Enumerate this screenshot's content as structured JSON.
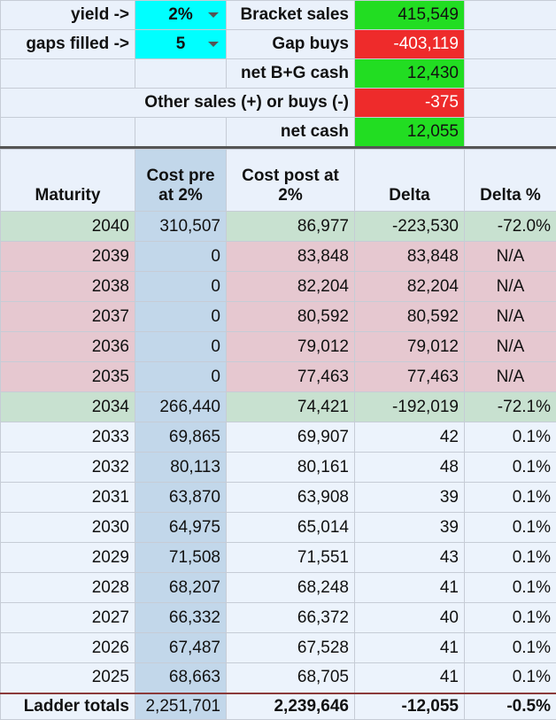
{
  "controls": {
    "yield_label": "yield  ->",
    "yield_value": "2%",
    "gaps_label": "gaps filled ->",
    "gaps_value": "5"
  },
  "summary": {
    "bracket_sales_label": "Bracket sales",
    "bracket_sales_value": "415,549",
    "gap_buys_label": "Gap buys",
    "gap_buys_value": "-403,119",
    "net_bg_label": "net B+G cash",
    "net_bg_value": "12,430",
    "other_label": "Other sales (+) or buys (-)",
    "other_value": "-375",
    "net_cash_label": "net cash",
    "net_cash_value": "12,055"
  },
  "table": {
    "headers": {
      "maturity": "Maturity",
      "cost_pre_1": "Cost pre",
      "cost_pre_2": "at 2%",
      "cost_post_1": "Cost post at",
      "cost_post_2": "2%",
      "delta": "Delta",
      "delta_pct": "Delta %"
    },
    "rows": [
      {
        "year": "2040",
        "pre": "310,507",
        "post": "86,977",
        "delta": "-223,530",
        "pct": "-72.0%"
      },
      {
        "year": "2039",
        "pre": "0",
        "post": "83,848",
        "delta": "83,848",
        "pct": "N/A"
      },
      {
        "year": "2038",
        "pre": "0",
        "post": "82,204",
        "delta": "82,204",
        "pct": "N/A"
      },
      {
        "year": "2037",
        "pre": "0",
        "post": "80,592",
        "delta": "80,592",
        "pct": "N/A"
      },
      {
        "year": "2036",
        "pre": "0",
        "post": "79,012",
        "delta": "79,012",
        "pct": "N/A"
      },
      {
        "year": "2035",
        "pre": "0",
        "post": "77,463",
        "delta": "77,463",
        "pct": "N/A"
      },
      {
        "year": "2034",
        "pre": "266,440",
        "post": "74,421",
        "delta": "-192,019",
        "pct": "-72.1%"
      },
      {
        "year": "2033",
        "pre": "69,865",
        "post": "69,907",
        "delta": "42",
        "pct": "0.1%"
      },
      {
        "year": "2032",
        "pre": "80,113",
        "post": "80,161",
        "delta": "48",
        "pct": "0.1%"
      },
      {
        "year": "2031",
        "pre": "63,870",
        "post": "63,908",
        "delta": "39",
        "pct": "0.1%"
      },
      {
        "year": "2030",
        "pre": "64,975",
        "post": "65,014",
        "delta": "39",
        "pct": "0.1%"
      },
      {
        "year": "2029",
        "pre": "71,508",
        "post": "71,551",
        "delta": "43",
        "pct": "0.1%"
      },
      {
        "year": "2028",
        "pre": "68,207",
        "post": "68,248",
        "delta": "41",
        "pct": "0.1%"
      },
      {
        "year": "2027",
        "pre": "66,332",
        "post": "66,372",
        "delta": "40",
        "pct": "0.1%"
      },
      {
        "year": "2026",
        "pre": "67,487",
        "post": "67,528",
        "delta": "41",
        "pct": "0.1%"
      },
      {
        "year": "2025",
        "pre": "68,663",
        "post": "68,705",
        "delta": "41",
        "pct": "0.1%"
      }
    ],
    "totals": {
      "label": "Ladder totals",
      "pre": "2,251,701",
      "post": "2,239,646",
      "delta": "-12,055",
      "pct": "-0.5%"
    }
  },
  "colors": {
    "cyan": "#00ffff",
    "green": "#22dd22",
    "red": "#ee2b2b",
    "row_green": "#c8e1d0",
    "row_pink": "#e6c8d0",
    "row_plain": "#ecf3fc",
    "cost_pre_col": "#c2d7ea"
  }
}
